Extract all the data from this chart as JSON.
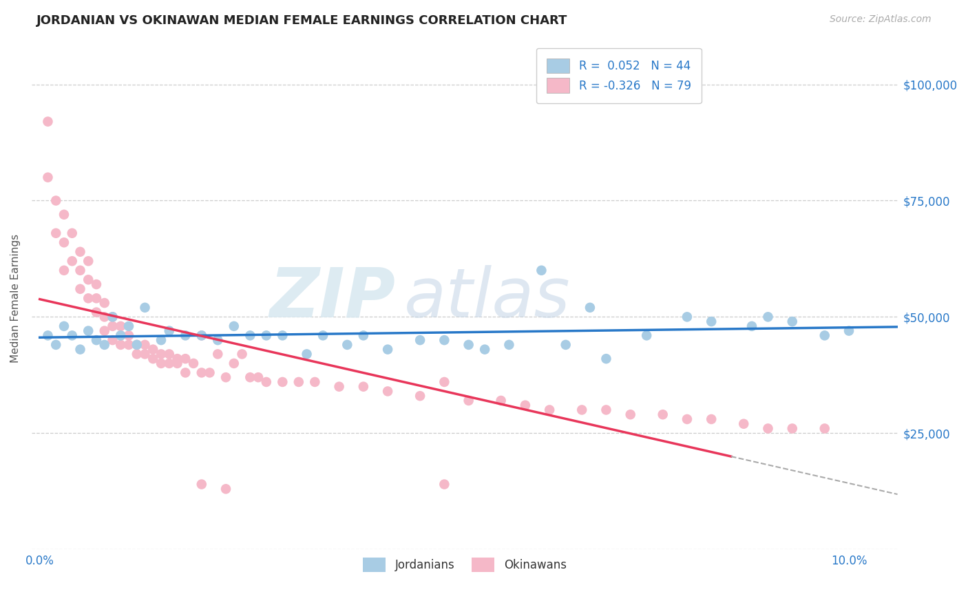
{
  "title": "JORDANIAN VS OKINAWAN MEDIAN FEMALE EARNINGS CORRELATION CHART",
  "source_text": "Source: ZipAtlas.com",
  "ylabel_text": "Median Female Earnings",
  "x_ticks": [
    0.0,
    0.02,
    0.04,
    0.06,
    0.08,
    0.1
  ],
  "x_tick_labels": [
    "0.0%",
    "",
    "",
    "",
    "",
    "10.0%"
  ],
  "y_ticks": [
    0,
    25000,
    50000,
    75000,
    100000
  ],
  "xlim": [
    -0.001,
    0.106
  ],
  "ylim": [
    8000,
    108000
  ],
  "jordanians_R": "0.052",
  "jordanians_N": 44,
  "okinawans_R": "-0.326",
  "okinawans_N": 79,
  "legend_label_1": "Jordanians",
  "legend_label_2": "Okinawans",
  "jordanians_color": "#a8cce4",
  "okinawans_color": "#f5b8c8",
  "jordanians_line_color": "#2878c8",
  "okinawans_line_color": "#e8365a",
  "watermark_zip": "ZIP",
  "watermark_atlas": "atlas",
  "background_color": "#ffffff",
  "grid_color": "#cccccc",
  "title_color": "#222222",
  "axis_label_color": "#555555",
  "tick_label_color": "#2878c8",
  "jordanians_x": [
    0.001,
    0.002,
    0.003,
    0.004,
    0.005,
    0.006,
    0.007,
    0.008,
    0.009,
    0.01,
    0.011,
    0.012,
    0.013,
    0.015,
    0.016,
    0.018,
    0.02,
    0.022,
    0.024,
    0.026,
    0.028,
    0.03,
    0.033,
    0.035,
    0.038,
    0.04,
    0.043,
    0.047,
    0.05,
    0.053,
    0.055,
    0.058,
    0.062,
    0.065,
    0.068,
    0.07,
    0.075,
    0.08,
    0.083,
    0.088,
    0.09,
    0.093,
    0.097,
    0.1
  ],
  "jordanians_y": [
    46000,
    44000,
    48000,
    46000,
    43000,
    47000,
    45000,
    44000,
    50000,
    46000,
    48000,
    44000,
    52000,
    45000,
    47000,
    46000,
    46000,
    45000,
    48000,
    46000,
    46000,
    46000,
    42000,
    46000,
    44000,
    46000,
    43000,
    45000,
    45000,
    44000,
    43000,
    44000,
    60000,
    44000,
    52000,
    41000,
    46000,
    50000,
    49000,
    48000,
    50000,
    49000,
    46000,
    47000
  ],
  "okinawans_x": [
    0.001,
    0.001,
    0.002,
    0.002,
    0.003,
    0.003,
    0.003,
    0.004,
    0.004,
    0.005,
    0.005,
    0.005,
    0.006,
    0.006,
    0.006,
    0.007,
    0.007,
    0.007,
    0.008,
    0.008,
    0.008,
    0.009,
    0.009,
    0.009,
    0.01,
    0.01,
    0.01,
    0.011,
    0.011,
    0.012,
    0.012,
    0.013,
    0.013,
    0.014,
    0.014,
    0.015,
    0.015,
    0.016,
    0.016,
    0.017,
    0.017,
    0.018,
    0.018,
    0.019,
    0.02,
    0.02,
    0.021,
    0.022,
    0.023,
    0.024,
    0.025,
    0.026,
    0.027,
    0.028,
    0.03,
    0.032,
    0.034,
    0.037,
    0.04,
    0.043,
    0.047,
    0.05,
    0.053,
    0.057,
    0.06,
    0.063,
    0.067,
    0.07,
    0.073,
    0.077,
    0.08,
    0.083,
    0.087,
    0.09,
    0.093,
    0.097,
    0.02,
    0.023,
    0.05
  ],
  "okinawans_y": [
    92000,
    80000,
    75000,
    68000,
    72000,
    66000,
    60000,
    68000,
    62000,
    64000,
    60000,
    56000,
    62000,
    58000,
    54000,
    57000,
    54000,
    51000,
    53000,
    50000,
    47000,
    50000,
    48000,
    45000,
    48000,
    46000,
    44000,
    46000,
    44000,
    44000,
    42000,
    44000,
    42000,
    43000,
    41000,
    42000,
    40000,
    42000,
    40000,
    41000,
    40000,
    41000,
    38000,
    40000,
    46000,
    38000,
    38000,
    42000,
    37000,
    40000,
    42000,
    37000,
    37000,
    36000,
    36000,
    36000,
    36000,
    35000,
    35000,
    34000,
    33000,
    36000,
    32000,
    32000,
    31000,
    30000,
    30000,
    30000,
    29000,
    29000,
    28000,
    28000,
    27000,
    26000,
    26000,
    26000,
    14000,
    13000,
    14000
  ]
}
